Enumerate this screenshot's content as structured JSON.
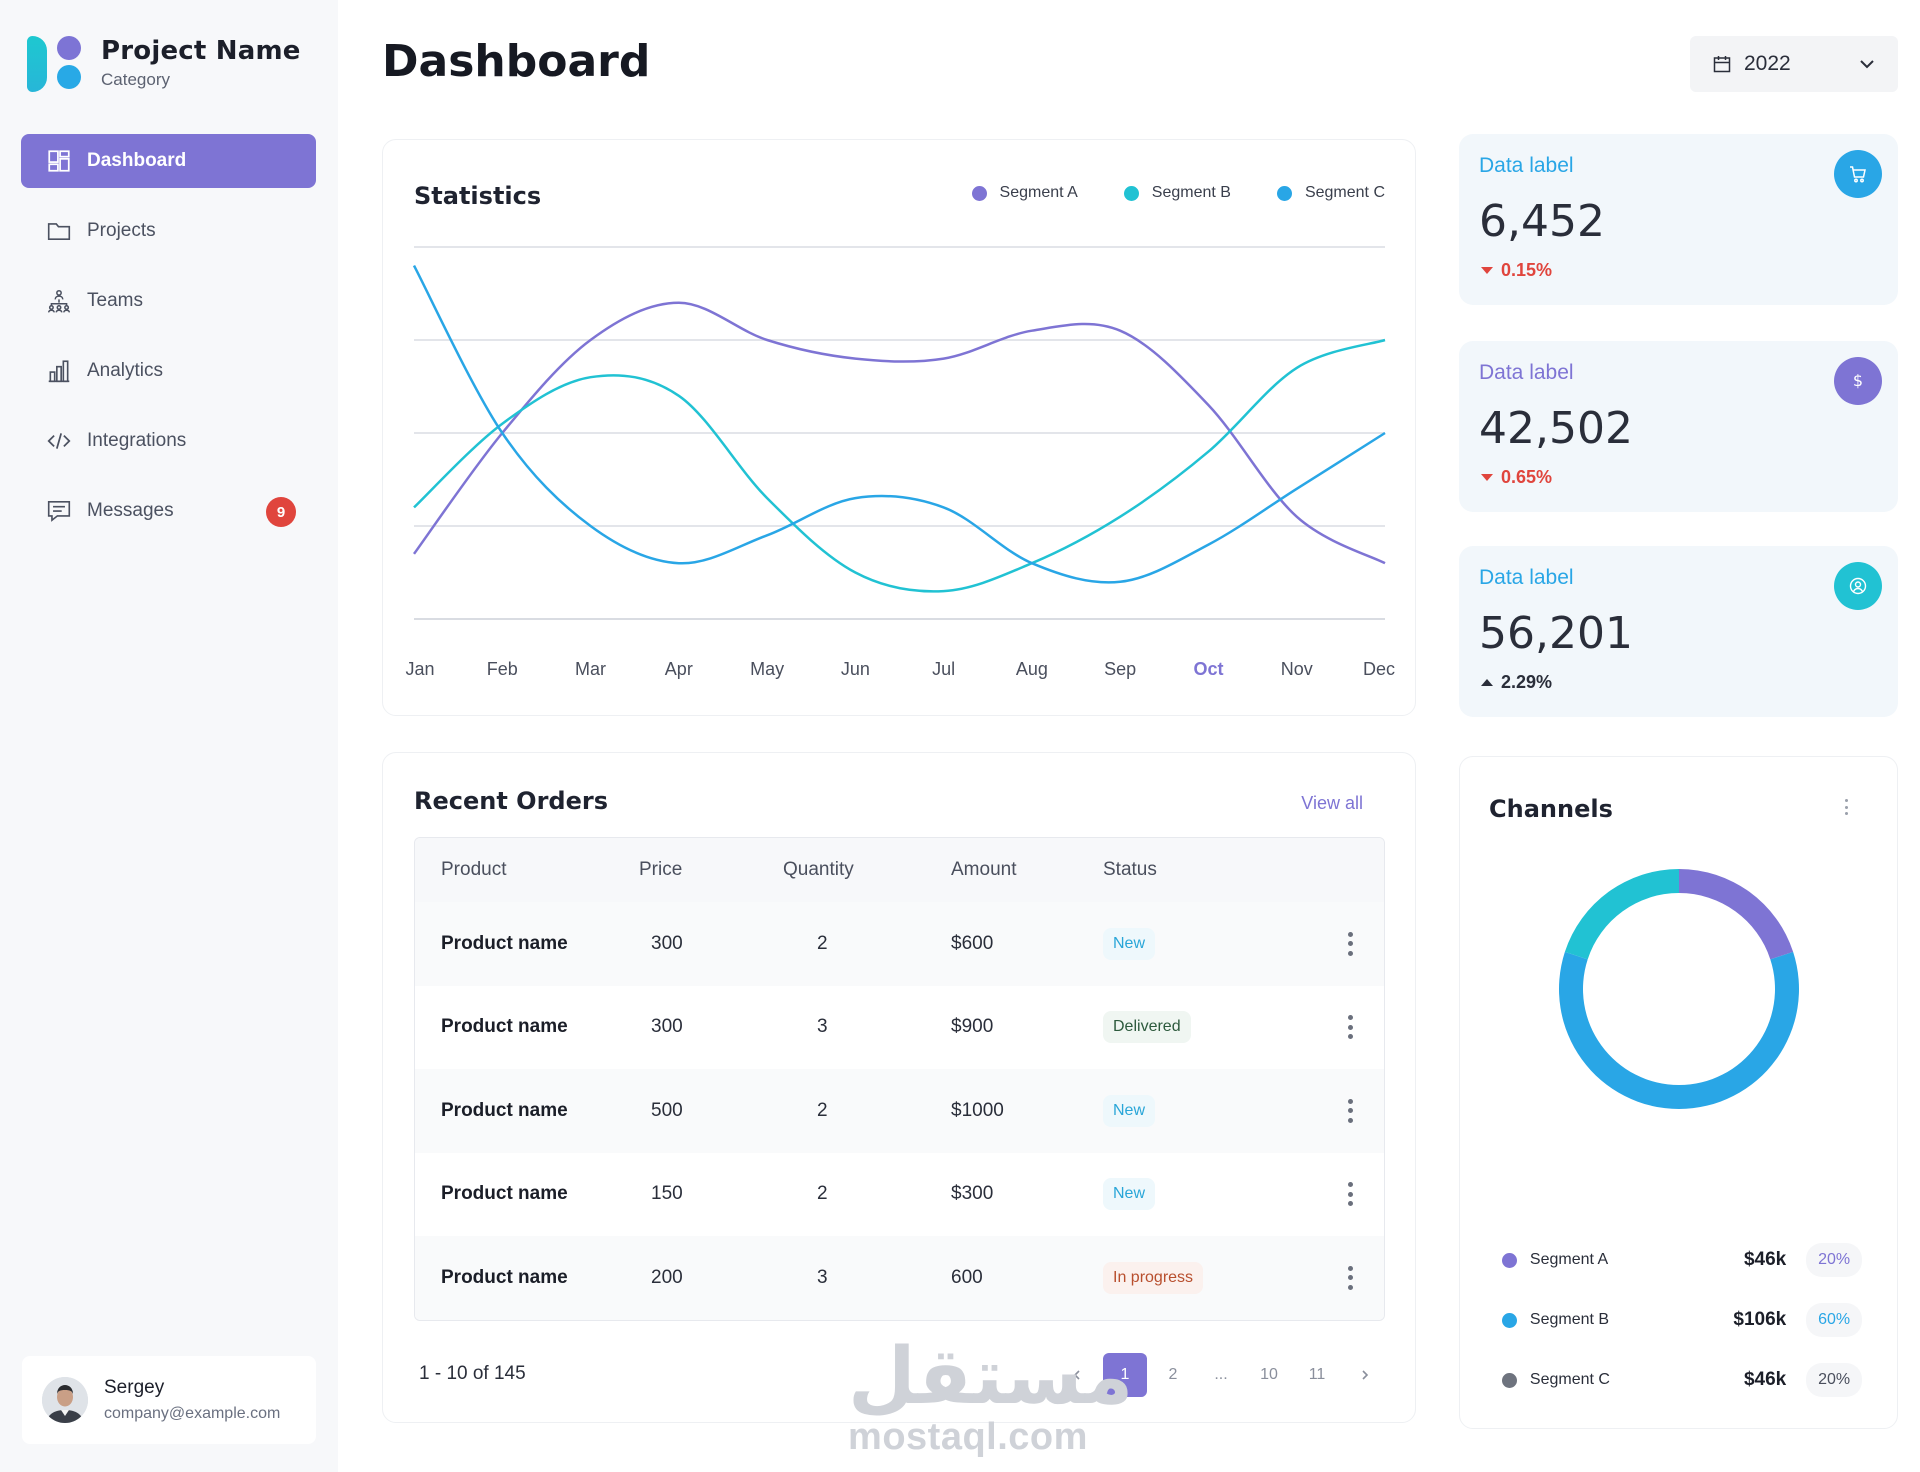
{
  "brand": {
    "name": "Project Name",
    "category": "Category"
  },
  "nav": [
    {
      "label": "Dashboard",
      "icon": "dashboard-icon",
      "active": true
    },
    {
      "label": "Projects",
      "icon": "folder-icon"
    },
    {
      "label": "Teams",
      "icon": "teams-icon"
    },
    {
      "label": "Analytics",
      "icon": "analytics-icon"
    },
    {
      "label": "Integrations",
      "icon": "code-icon"
    },
    {
      "label": "Messages",
      "icon": "message-icon",
      "badge": "9"
    }
  ],
  "user": {
    "name": "Sergey",
    "email": "company@example.com"
  },
  "header": {
    "title": "Dashboard",
    "year": "2022"
  },
  "colors": {
    "accent": "#7e74d4",
    "segment_a": "#7e74d4",
    "segment_b": "#21c2d3",
    "segment_c": "#29a6e6",
    "down": "#e0453d"
  },
  "statistics": {
    "title": "Statistics",
    "legend": [
      "Segment A",
      "Segment B",
      "Segment C"
    ],
    "active_month": "Oct"
  },
  "chart_data": {
    "type": "line",
    "title": "Statistics",
    "x": [
      "Jan",
      "Feb",
      "Mar",
      "Apr",
      "May",
      "Jun",
      "Jul",
      "Aug",
      "Sep",
      "Oct",
      "Nov",
      "Dec"
    ],
    "ylim": [
      0,
      4
    ],
    "grid": true,
    "legend_position": "top-right",
    "series": [
      {
        "name": "Segment A",
        "color": "#7e74d4",
        "values": [
          0.7,
          2.0,
          3.0,
          3.4,
          3.0,
          2.8,
          2.8,
          3.1,
          3.1,
          2.3,
          1.1,
          0.6
        ]
      },
      {
        "name": "Segment B",
        "color": "#21c2d3",
        "values": [
          1.2,
          2.1,
          2.6,
          2.4,
          1.3,
          0.5,
          0.3,
          0.6,
          1.1,
          1.8,
          2.7,
          3.0
        ]
      },
      {
        "name": "Segment C",
        "color": "#29a6e6",
        "values": [
          3.8,
          2.0,
          1.0,
          0.6,
          0.9,
          1.3,
          1.2,
          0.6,
          0.4,
          0.8,
          1.4,
          2.0
        ]
      }
    ]
  },
  "orders": {
    "title": "Recent Orders",
    "view_all": "View all",
    "columns": [
      "Product",
      "Price",
      "Quantity",
      "Amount",
      "Status"
    ],
    "rows": [
      {
        "product": "Product name",
        "price": "300",
        "qty": "2",
        "amount": "$600",
        "status": "New",
        "kind": "new"
      },
      {
        "product": "Product name",
        "price": "300",
        "qty": "3",
        "amount": "$900",
        "status": "Delivered",
        "kind": "delivered"
      },
      {
        "product": "Product name",
        "price": "500",
        "qty": "2",
        "amount": "$1000",
        "status": "New",
        "kind": "new"
      },
      {
        "product": "Product name",
        "price": "150",
        "qty": "2",
        "amount": "$300",
        "status": "New",
        "kind": "new"
      },
      {
        "product": "Product name",
        "price": "200",
        "qty": "3",
        "amount": "600",
        "status": "In progress",
        "kind": "progress"
      }
    ],
    "pagination": {
      "info": "1 - 10 of 145",
      "pages": [
        "1",
        "2",
        "...",
        "10",
        "11"
      ],
      "current": "1"
    }
  },
  "kpis": [
    {
      "label": "Data label",
      "value": "6,452",
      "delta": "0.15%",
      "direction": "down",
      "label_color": "#29a6e6",
      "icon": "cart-icon",
      "icon_bg": "#29a6e6"
    },
    {
      "label": "Data label",
      "value": "42,502",
      "delta": "0.65%",
      "direction": "down",
      "label_color": "#7e74d4",
      "icon": "dollar-icon",
      "icon_bg": "#7e74d4"
    },
    {
      "label": "Data label",
      "value": "56,201",
      "delta": "2.29%",
      "direction": "up",
      "label_color": "#29a6e6",
      "icon": "user-circle-icon",
      "icon_bg": "#21c2d3"
    }
  ],
  "channels": {
    "title": "Channels",
    "donut": [
      {
        "name": "Segment A",
        "value": 20,
        "color": "#7e74d4"
      },
      {
        "name": "Segment B",
        "value": 60,
        "color": "#29a6e6"
      },
      {
        "name": "Segment C",
        "value": 20,
        "color": "#21c2d3"
      }
    ],
    "items": [
      {
        "name": "Segment A",
        "amount": "$46k",
        "pct": "20%",
        "dot": "#7e74d4",
        "pct_color": "#7e74d4"
      },
      {
        "name": "Segment B",
        "amount": "$106k",
        "pct": "60%",
        "dot": "#29a6e6",
        "pct_color": "#29a6e6"
      },
      {
        "name": "Segment C",
        "amount": "$46k",
        "pct": "20%",
        "dot": "#6e737e",
        "pct_color": "#4a4f5d"
      }
    ]
  },
  "watermark": {
    "arabic": "مستقل",
    "latin": "mostaql.com"
  }
}
